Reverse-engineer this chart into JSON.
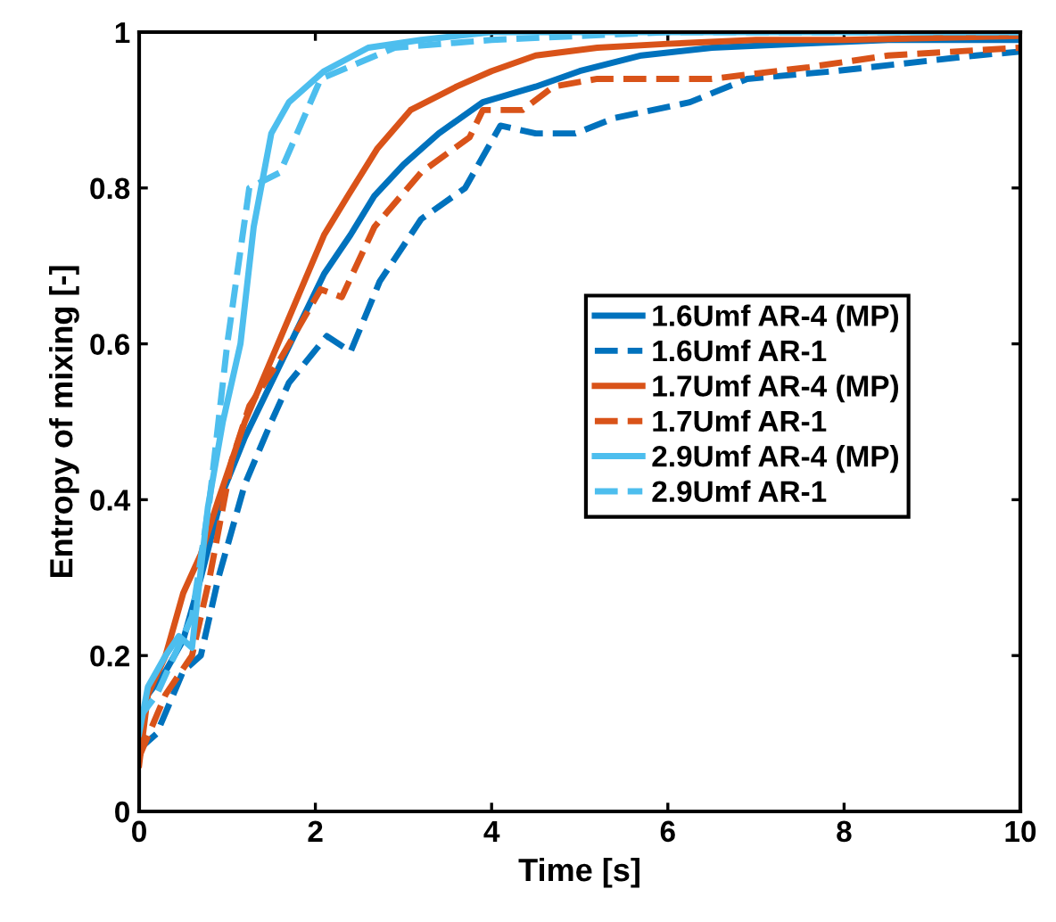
{
  "chart_data": {
    "type": "line",
    "xlabel": "Time [s]",
    "ylabel": "Entropy of mixing [-]",
    "xlim": [
      0,
      10
    ],
    "ylim": [
      0,
      1
    ],
    "xticks": [
      0,
      2,
      4,
      6,
      8,
      10
    ],
    "yticks": [
      0,
      0.2,
      0.4,
      0.6,
      0.8,
      1
    ],
    "grid": false,
    "legend": "right",
    "marker": "none",
    "series": [
      {
        "name": "1.6Umf AR-4 (MP)",
        "color": "#0072bd",
        "line_style": "solid",
        "x": [
          0,
          0.1,
          0.3,
          0.5,
          0.7,
          0.95,
          1.2,
          1.5,
          1.8,
          2.1,
          2.4,
          2.67,
          3.0,
          3.4,
          3.9,
          4.5,
          5.0,
          5.7,
          6.5,
          7.5,
          8.5,
          10
        ],
        "values": [
          0.08,
          0.15,
          0.18,
          0.22,
          0.3,
          0.41,
          0.48,
          0.55,
          0.62,
          0.69,
          0.74,
          0.79,
          0.83,
          0.87,
          0.91,
          0.93,
          0.95,
          0.97,
          0.98,
          0.985,
          0.99,
          0.99
        ]
      },
      {
        "name": "1.6Umf AR-1",
        "color": "#0072bd",
        "line_style": "dashed",
        "x": [
          0,
          0.2,
          0.5,
          0.7,
          0.9,
          1.2,
          1.5,
          1.7,
          2.13,
          2.4,
          2.73,
          3.2,
          3.7,
          4.1,
          4.5,
          4.95,
          5.4,
          6.25,
          6.9,
          7.9,
          9.5,
          10
        ],
        "values": [
          0.08,
          0.1,
          0.18,
          0.2,
          0.3,
          0.42,
          0.5,
          0.55,
          0.61,
          0.59,
          0.68,
          0.76,
          0.8,
          0.88,
          0.87,
          0.87,
          0.89,
          0.91,
          0.94,
          0.95,
          0.97,
          0.975
        ]
      },
      {
        "name": "1.7Umf AR-4 (MP)",
        "color": "#d95319",
        "line_style": "solid",
        "x": [
          0,
          0.1,
          0.3,
          0.5,
          0.7,
          0.9,
          1.2,
          1.5,
          1.8,
          2.1,
          2.37,
          2.7,
          3.08,
          3.6,
          4.0,
          4.5,
          5.2,
          6,
          7,
          8,
          10
        ],
        "values": [
          0.06,
          0.15,
          0.2,
          0.28,
          0.33,
          0.4,
          0.5,
          0.58,
          0.66,
          0.74,
          0.79,
          0.85,
          0.9,
          0.93,
          0.95,
          0.97,
          0.98,
          0.985,
          0.99,
          0.99,
          0.995
        ]
      },
      {
        "name": "1.7Umf AR-1",
        "color": "#d95319",
        "line_style": "dashed",
        "x": [
          0,
          0.3,
          0.6,
          0.8,
          1.05,
          1.25,
          1.6,
          2.06,
          2.3,
          2.67,
          3.2,
          3.75,
          3.9,
          4.35,
          4.7,
          5.2,
          6.5,
          7.6,
          8.5,
          10
        ],
        "values": [
          0.07,
          0.15,
          0.2,
          0.3,
          0.45,
          0.52,
          0.58,
          0.67,
          0.66,
          0.75,
          0.82,
          0.865,
          0.9,
          0.9,
          0.93,
          0.94,
          0.94,
          0.955,
          0.97,
          0.98
        ]
      },
      {
        "name": "2.9Umf AR-4 (MP)",
        "color": "#4dbeee",
        "line_style": "solid",
        "x": [
          0,
          0.1,
          0.3,
          0.45,
          0.6,
          0.78,
          0.95,
          1.15,
          1.3,
          1.5,
          1.7,
          2.1,
          2.6,
          3.2,
          4,
          6,
          8,
          10
        ],
        "values": [
          0.1,
          0.16,
          0.2,
          0.225,
          0.21,
          0.39,
          0.5,
          0.6,
          0.75,
          0.87,
          0.91,
          0.95,
          0.98,
          0.99,
          1.0,
          1.0,
          1.0,
          1.0
        ]
      },
      {
        "name": "2.9Umf AR-1",
        "color": "#4dbeee",
        "line_style": "dashed",
        "x": [
          0,
          0.2,
          0.4,
          0.6,
          0.8,
          1.0,
          1.25,
          1.6,
          2.06,
          2.9,
          4,
          6,
          8,
          10
        ],
        "values": [
          0.12,
          0.15,
          0.2,
          0.25,
          0.4,
          0.6,
          0.8,
          0.82,
          0.94,
          0.98,
          0.99,
          1.0,
          1.0,
          1.0
        ]
      }
    ]
  }
}
